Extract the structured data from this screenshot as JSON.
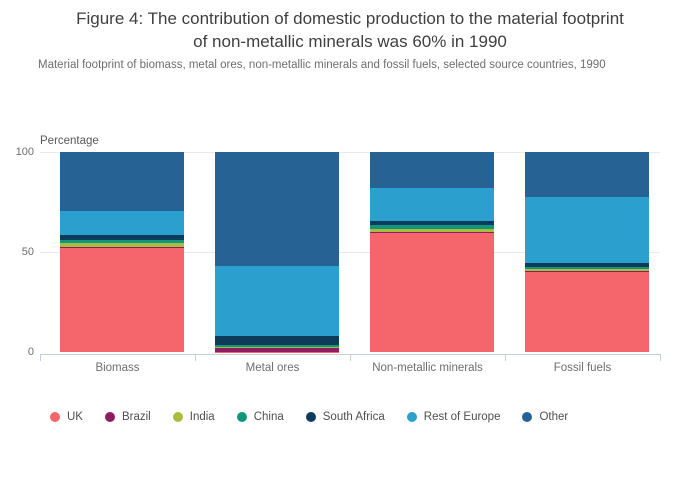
{
  "header": {
    "title_lines": [
      "Figure 4: The contribution of domestic production to the material footprint",
      "of non-metallic minerals was 60% in 1990"
    ],
    "subtitle": "Material footprint of biomass, metal ores, non-metallic minerals and fossil fuels, selected source countries, 1990"
  },
  "chart_data": {
    "type": "bar",
    "stacked": true,
    "title": "Figure 4: The contribution of domestic production to the material footprint of non-metallic minerals was 60% in 1990",
    "subtitle": "Material footprint of biomass, metal ores, non-metallic minerals and fossil fuels, selected source countries, 1990",
    "ylabel": "Percentage",
    "ylim": [
      0,
      100
    ],
    "yticks": [
      "100",
      "50",
      "0"
    ],
    "grid": "horizontal gridlines at 50 and 100",
    "legend_position": "bottom",
    "categories": [
      "Biomass",
      "Metal ores",
      "Non-metallic minerals",
      "Fossil fuels"
    ],
    "series": [
      {
        "name": "UK",
        "color": "#f4656c",
        "values": [
          52,
          0.2,
          60,
          40
        ]
      },
      {
        "name": "Brazil",
        "color": "#8e1d5f",
        "values": [
          0.7,
          2.2,
          0.2,
          0.3
        ]
      },
      {
        "name": "India",
        "color": "#a9bc3c",
        "values": [
          2,
          0.2,
          1.5,
          1
        ]
      },
      {
        "name": "China",
        "color": "#11957c",
        "values": [
          1.3,
          1,
          1.8,
          1
        ]
      },
      {
        "name": "South Africa",
        "color": "#0d3c5a",
        "values": [
          2.7,
          4.3,
          2,
          2
        ]
      },
      {
        "name": "Rest of Europe",
        "color": "#2ba0ce",
        "values": [
          11.8,
          35.1,
          16.5,
          33.4
        ]
      },
      {
        "name": "Other",
        "color": "#266294",
        "values": [
          29.5,
          57,
          18,
          22.3
        ]
      }
    ]
  },
  "colors": {
    "background": "#ffffff",
    "gridline": "#e9e9e9",
    "axis": "#c7d0da",
    "title_text": "#3f3f41",
    "subtitle_text": "#6e6e6e",
    "tick_text": "#6e6e6e",
    "legend_text": "#4f4f51"
  }
}
